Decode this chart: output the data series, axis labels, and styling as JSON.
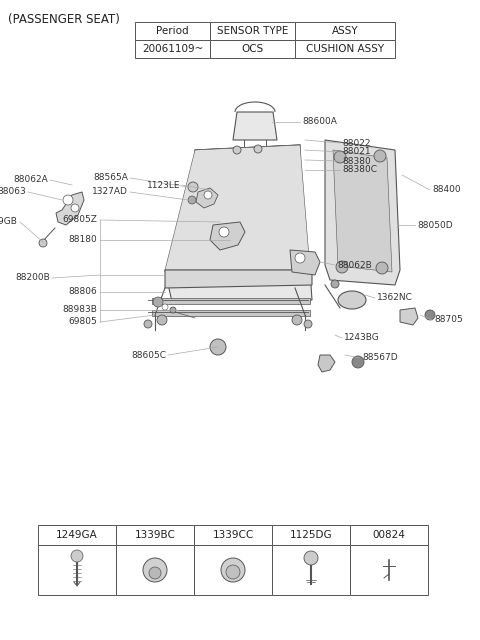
{
  "bg_color": "#ffffff",
  "title_left": "(PASSENGER SEAT)",
  "table_header": [
    "Period",
    "SENSOR TYPE",
    "ASSY"
  ],
  "table_row": [
    "20061109~",
    "OCS",
    "CUSHION ASSY"
  ],
  "bottom_headers": [
    "1249GA",
    "1339BC",
    "1339CC",
    "1125DG",
    "00824"
  ],
  "font_title": 8.5,
  "font_table": 7.5,
  "font_label": 6.5,
  "label_color": "#333333",
  "line_color": "#aaaaaa",
  "part_color": "#dddddd",
  "outline_color": "#555555"
}
